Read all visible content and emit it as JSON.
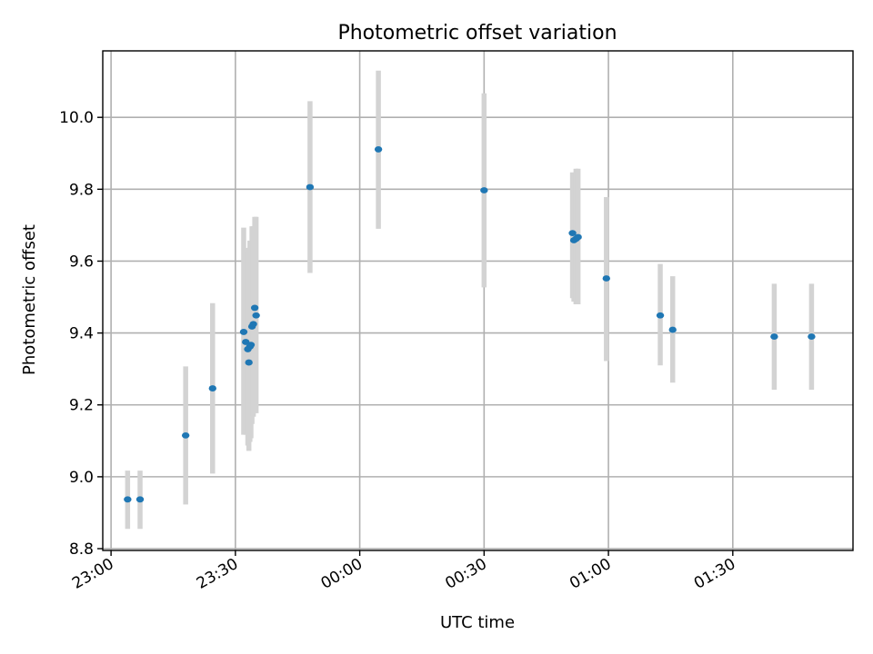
{
  "chart_data": {
    "type": "scatter",
    "title": "Photometric offset variation",
    "xlabel": "UTC time",
    "ylabel": "Photometric offset",
    "x_is_time": true,
    "xlim": [
      "22:58",
      "01:59"
    ],
    "ylim": [
      8.795,
      10.185
    ],
    "grid": true,
    "x_ticks": [
      {
        "t": "23:00",
        "label": "23:00"
      },
      {
        "t": "23:30",
        "label": "23:30"
      },
      {
        "t": "00:00",
        "label": "00:00"
      },
      {
        "t": "00:30",
        "label": "00:30"
      },
      {
        "t": "01:00",
        "label": "01:00"
      },
      {
        "t": "01:30",
        "label": "01:30"
      }
    ],
    "y_ticks": [
      {
        "v": 8.8,
        "label": "8.8"
      },
      {
        "v": 9.0,
        "label": "9.0"
      },
      {
        "v": 9.2,
        "label": "9.2"
      },
      {
        "v": 9.4,
        "label": "9.4"
      },
      {
        "v": 9.6,
        "label": "9.6"
      },
      {
        "v": 9.8,
        "label": "9.8"
      },
      {
        "v": 10.0,
        "label": "10.0"
      }
    ],
    "marker_color": "#1f77b4",
    "errorbar_color": "#d3d3d3",
    "points": [
      {
        "t": "23:04",
        "y": 8.937,
        "lo": 8.855,
        "hi": 9.017
      },
      {
        "t": "23:07",
        "y": 8.937,
        "lo": 8.855,
        "hi": 9.017
      },
      {
        "t": "23:18",
        "y": 9.115,
        "lo": 8.923,
        "hi": 9.307
      },
      {
        "t": "23:24:30",
        "y": 9.246,
        "lo": 9.009,
        "hi": 9.483
      },
      {
        "t": "23:32",
        "y": 9.403,
        "lo": 9.117,
        "hi": 9.693
      },
      {
        "t": "23:32:30",
        "y": 9.375,
        "lo": 9.117,
        "hi": 9.637
      },
      {
        "t": "23:33",
        "y": 9.355,
        "lo": 9.087,
        "hi": 9.627
      },
      {
        "t": "23:33:15",
        "y": 9.318,
        "lo": 9.072,
        "hi": 9.568
      },
      {
        "t": "23:33:30",
        "y": 9.362,
        "lo": 9.097,
        "hi": 9.657
      },
      {
        "t": "23:33:45",
        "y": 9.367,
        "lo": 9.107,
        "hi": 9.637
      },
      {
        "t": "23:34",
        "y": 9.418,
        "lo": 9.147,
        "hi": 9.697
      },
      {
        "t": "23:34:20",
        "y": 9.425,
        "lo": 9.167,
        "hi": 9.697
      },
      {
        "t": "23:34:40",
        "y": 9.47,
        "lo": 9.177,
        "hi": 9.723
      },
      {
        "t": "23:35",
        "y": 9.449,
        "lo": 9.177,
        "hi": 9.723
      },
      {
        "t": "23:48",
        "y": 9.806,
        "lo": 9.567,
        "hi": 10.045
      },
      {
        "t": "00:04:30",
        "y": 9.911,
        "lo": 9.69,
        "hi": 10.13
      },
      {
        "t": "00:30",
        "y": 9.797,
        "lo": 9.527,
        "hi": 10.067
      },
      {
        "t": "00:51:20",
        "y": 9.678,
        "lo": 9.497,
        "hi": 9.847
      },
      {
        "t": "00:51:40",
        "y": 9.658,
        "lo": 9.487,
        "hi": 9.837
      },
      {
        "t": "00:52:10",
        "y": 9.662,
        "lo": 9.48,
        "hi": 9.857
      },
      {
        "t": "00:52:40",
        "y": 9.667,
        "lo": 9.48,
        "hi": 9.857
      },
      {
        "t": "00:59:30",
        "y": 9.552,
        "lo": 9.322,
        "hi": 9.778
      },
      {
        "t": "01:12:30",
        "y": 9.449,
        "lo": 9.31,
        "hi": 9.592
      },
      {
        "t": "01:15:30",
        "y": 9.409,
        "lo": 9.262,
        "hi": 9.558
      },
      {
        "t": "01:40",
        "y": 9.39,
        "lo": 9.242,
        "hi": 9.537
      },
      {
        "t": "01:49",
        "y": 9.39,
        "lo": 9.242,
        "hi": 9.537
      }
    ]
  }
}
